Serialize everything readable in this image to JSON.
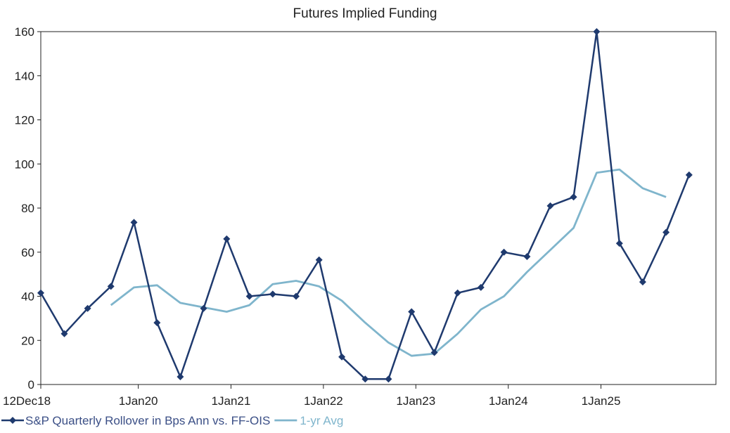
{
  "chart_data": {
    "type": "line",
    "title": "Futures Implied Funding",
    "xlabel": "",
    "ylabel": "",
    "ylim": [
      0,
      160
    ],
    "yticks": [
      "0",
      "20",
      "40",
      "60",
      "80",
      "100",
      "120",
      "140",
      "160"
    ],
    "xlim": [
      "2018-12-12",
      "2026-03-31"
    ],
    "xticks": [
      {
        "date": "2018-12-12",
        "label": "12Dec18"
      },
      {
        "date": "2020-01-01",
        "label": "1Jan20"
      },
      {
        "date": "2021-01-01",
        "label": "1Jan21"
      },
      {
        "date": "2022-01-01",
        "label": "1Jan22"
      },
      {
        "date": "2023-01-01",
        "label": "1Jan23"
      },
      {
        "date": "2024-01-01",
        "label": "1Jan24"
      },
      {
        "date": "2025-01-01",
        "label": "1Jan25"
      }
    ],
    "grid": false,
    "legend_position": "bottom-left",
    "series": [
      {
        "name": "S&P Quarterly Rollover in Bps Ann vs. FF-OIS",
        "color": "#1f3a6e",
        "markers": true,
        "points": [
          [
            "2018-12-12",
            41.5
          ],
          [
            "2019-03-15",
            23
          ],
          [
            "2019-06-15",
            34.5
          ],
          [
            "2019-09-15",
            44.5
          ],
          [
            "2019-12-15",
            73.5
          ],
          [
            "2020-03-15",
            28
          ],
          [
            "2020-06-15",
            3.5
          ],
          [
            "2020-09-15",
            34.5
          ],
          [
            "2020-12-15",
            66
          ],
          [
            "2021-03-15",
            40
          ],
          [
            "2021-06-15",
            41
          ],
          [
            "2021-09-15",
            40
          ],
          [
            "2021-12-15",
            56.5
          ],
          [
            "2022-03-15",
            12.5
          ],
          [
            "2022-06-15",
            2.5
          ],
          [
            "2022-09-15",
            2.5
          ],
          [
            "2022-12-15",
            33
          ],
          [
            "2023-03-15",
            14.5
          ],
          [
            "2023-06-15",
            41.5
          ],
          [
            "2023-09-15",
            44
          ],
          [
            "2023-12-15",
            60
          ],
          [
            "2024-03-15",
            58
          ],
          [
            "2024-06-15",
            81
          ],
          [
            "2024-09-15",
            85
          ],
          [
            "2024-12-15",
            160
          ],
          [
            "2025-03-15",
            64
          ],
          [
            "2025-06-15",
            46.5
          ],
          [
            "2025-09-15",
            69
          ],
          [
            "2025-12-15",
            95
          ]
        ]
      },
      {
        "name": "1-yr Avg",
        "color": "#7fb5cc",
        "markers": false,
        "points": [
          [
            "2019-09-15",
            36
          ],
          [
            "2019-12-15",
            44
          ],
          [
            "2020-03-15",
            45
          ],
          [
            "2020-06-15",
            37
          ],
          [
            "2020-09-15",
            35
          ],
          [
            "2020-12-15",
            33
          ],
          [
            "2021-03-15",
            36
          ],
          [
            "2021-06-15",
            45.5
          ],
          [
            "2021-09-15",
            47
          ],
          [
            "2021-12-15",
            44.5
          ],
          [
            "2022-03-15",
            38
          ],
          [
            "2022-06-15",
            28
          ],
          [
            "2022-09-15",
            19
          ],
          [
            "2022-12-15",
            13
          ],
          [
            "2023-03-15",
            14
          ],
          [
            "2023-06-15",
            23
          ],
          [
            "2023-09-15",
            34
          ],
          [
            "2023-12-15",
            40
          ],
          [
            "2024-03-15",
            51
          ],
          [
            "2024-06-15",
            61
          ],
          [
            "2024-09-15",
            71
          ],
          [
            "2024-12-15",
            96
          ],
          [
            "2025-03-15",
            97.5
          ],
          [
            "2025-06-15",
            89
          ],
          [
            "2025-09-15",
            85
          ]
        ]
      }
    ]
  }
}
